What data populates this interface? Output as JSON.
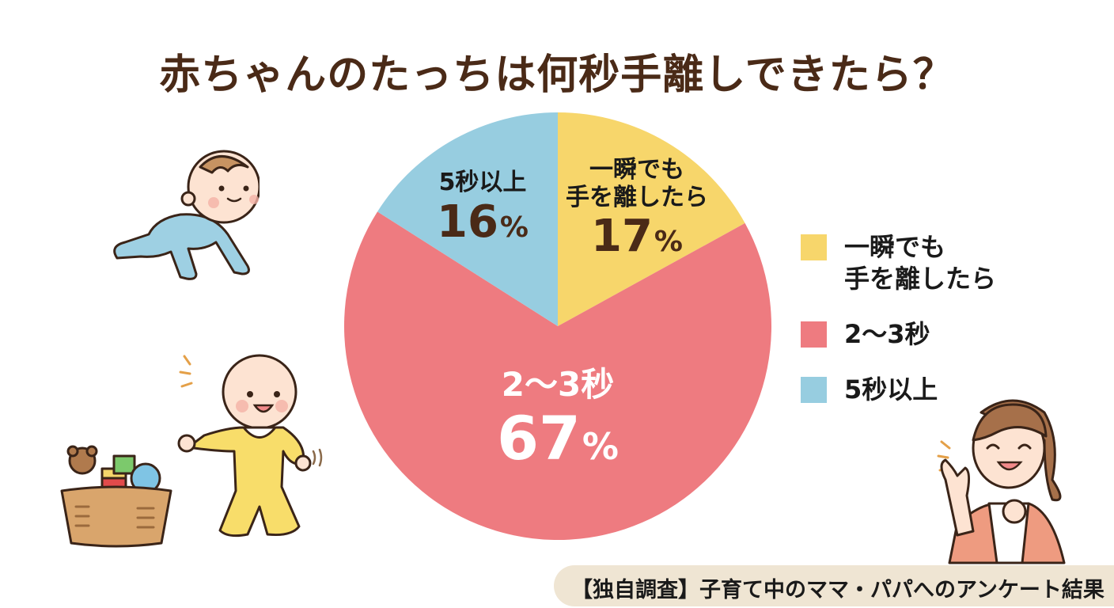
{
  "title": "赤ちゃんのたっちは何秒手離しできたら？",
  "chart_data": {
    "type": "pie",
    "title": "赤ちゃんのたっちは何秒手離しできたら？",
    "categories": [
      "一瞬でも手を離したら",
      "2〜3秒",
      "5秒以上"
    ],
    "values": [
      17,
      67,
      16
    ],
    "unit": "%",
    "colors": [
      "#f7d66b",
      "#ee7b80",
      "#97cde0"
    ],
    "start_angle_deg": 0,
    "direction": "clockwise",
    "legend_position": "right"
  },
  "slice_labels": {
    "yellow": {
      "cat_line1": "一瞬でも",
      "cat_line2": "手を離したら",
      "value": "17",
      "sym": "%"
    },
    "red": {
      "cat": "2〜3秒",
      "value": "67",
      "sym": "%"
    },
    "blue": {
      "cat": "5秒以上",
      "value": "16",
      "sym": "%"
    }
  },
  "legend": {
    "items": [
      {
        "label": "一瞬でも\n手を離したら",
        "color": "#f7d66b"
      },
      {
        "label": "2〜3秒",
        "color": "#ee7b80"
      },
      {
        "label": "5秒以上",
        "color": "#97cde0"
      }
    ]
  },
  "footer": {
    "text": "【独自調査】子育て中のママ・パパへのアンケート結果"
  },
  "illustrations": [
    "crawling-baby",
    "walking-baby",
    "toy-basket",
    "cheering-mother"
  ]
}
